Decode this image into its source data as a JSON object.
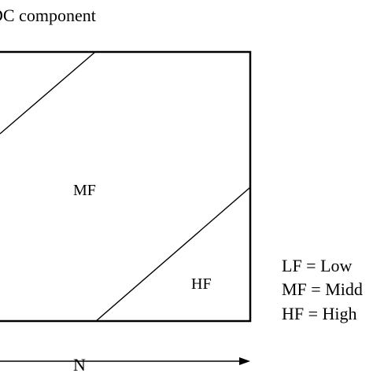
{
  "diagram": {
    "title": "DC component",
    "regions": {
      "mf": "MF",
      "hf": "HF"
    },
    "axis": {
      "x_label": "N"
    },
    "legend": [
      {
        "text": "LF = Low"
      },
      {
        "text": "MF = Midd"
      },
      {
        "text": "HF = High"
      }
    ]
  }
}
